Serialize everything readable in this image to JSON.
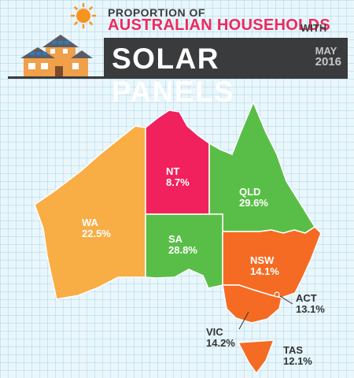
{
  "title": {
    "line1": "PROPORTION OF",
    "line2": "AUSTRALIAN HOUSEHOLDS",
    "line2_suffix": "WITH",
    "line3": "SOLAR PANELS",
    "month": "MAY",
    "year": "2016"
  },
  "colors": {
    "accent": "#ee2a5d",
    "banner": "#3a3b3d",
    "background": "#e9f6fb"
  },
  "icons": [
    "sun-icon",
    "house-icon"
  ],
  "regions": [
    {
      "name": "NT",
      "value": "8.7%",
      "color": "#f0215d"
    },
    {
      "name": "WA",
      "value": "22.5%",
      "color": "#f8ad45"
    },
    {
      "name": "QLD",
      "value": "29.6%",
      "color": "#59be47"
    },
    {
      "name": "SA",
      "value": "28.8%",
      "color": "#59be47"
    },
    {
      "name": "NSW",
      "value": "14.1%",
      "color": "#f56b24"
    },
    {
      "name": "ACT",
      "value": "13.1%",
      "color": "#f56b24"
    },
    {
      "name": "VIC",
      "value": "14.2%",
      "color": "#f56b24"
    },
    {
      "name": "TAS",
      "value": "12.1%",
      "color": "#f56b24"
    }
  ]
}
